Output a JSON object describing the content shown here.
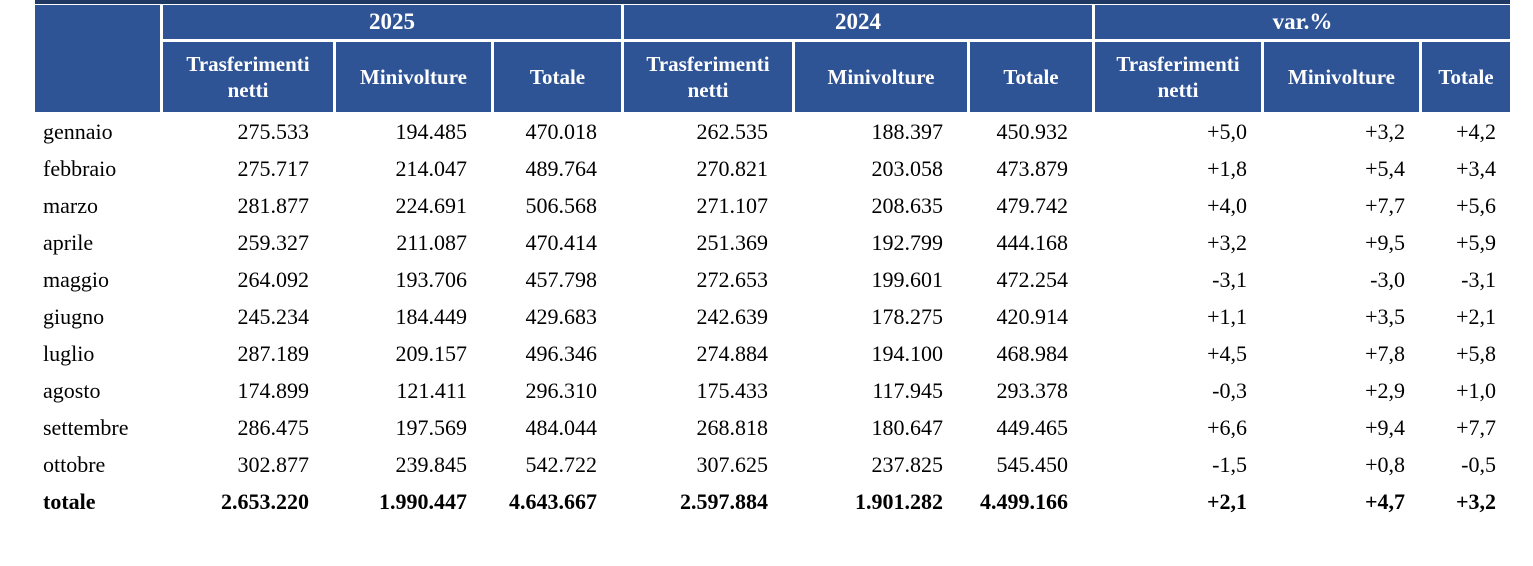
{
  "colors": {
    "header_bg": "#2f5496",
    "header_text": "#ffffff",
    "top_rule": "#1f3864",
    "body_text": "#000000"
  },
  "table": {
    "groups": [
      "2025",
      "2024",
      "var.%"
    ],
    "subheader_labels": [
      "Trasferimenti netti",
      "Minivolture",
      "Totale"
    ],
    "rows": [
      {
        "label": "gennaio",
        "bold": false,
        "values": [
          "275.533",
          "194.485",
          "470.018",
          "262.535",
          "188.397",
          "450.932",
          "+5,0",
          "+3,2",
          "+4,2"
        ]
      },
      {
        "label": "febbraio",
        "bold": false,
        "values": [
          "275.717",
          "214.047",
          "489.764",
          "270.821",
          "203.058",
          "473.879",
          "+1,8",
          "+5,4",
          "+3,4"
        ]
      },
      {
        "label": "marzo",
        "bold": false,
        "values": [
          "281.877",
          "224.691",
          "506.568",
          "271.107",
          "208.635",
          "479.742",
          "+4,0",
          "+7,7",
          "+5,6"
        ]
      },
      {
        "label": "aprile",
        "bold": false,
        "values": [
          "259.327",
          "211.087",
          "470.414",
          "251.369",
          "192.799",
          "444.168",
          "+3,2",
          "+9,5",
          "+5,9"
        ]
      },
      {
        "label": "maggio",
        "bold": false,
        "values": [
          "264.092",
          "193.706",
          "457.798",
          "272.653",
          "199.601",
          "472.254",
          "-3,1",
          "-3,0",
          "-3,1"
        ]
      },
      {
        "label": "giugno",
        "bold": false,
        "values": [
          "245.234",
          "184.449",
          "429.683",
          "242.639",
          "178.275",
          "420.914",
          "+1,1",
          "+3,5",
          "+2,1"
        ]
      },
      {
        "label": "luglio",
        "bold": false,
        "values": [
          "287.189",
          "209.157",
          "496.346",
          "274.884",
          "194.100",
          "468.984",
          "+4,5",
          "+7,8",
          "+5,8"
        ]
      },
      {
        "label": "agosto",
        "bold": false,
        "values": [
          "174.899",
          "121.411",
          "296.310",
          "175.433",
          "117.945",
          "293.378",
          "-0,3",
          "+2,9",
          "+1,0"
        ]
      },
      {
        "label": "settembre",
        "bold": false,
        "values": [
          "286.475",
          "197.569",
          "484.044",
          "268.818",
          "180.647",
          "449.465",
          "+6,6",
          "+9,4",
          "+7,7"
        ]
      },
      {
        "label": "ottobre",
        "bold": false,
        "values": [
          "302.877",
          "239.845",
          "542.722",
          "307.625",
          "237.825",
          "545.450",
          "-1,5",
          "+0,8",
          "-0,5"
        ]
      },
      {
        "label": "totale",
        "bold": true,
        "values": [
          "2.653.220",
          "1.990.447",
          "4.643.667",
          "2.597.884",
          "1.901.282",
          "4.499.166",
          "+2,1",
          "+4,7",
          "+3,2"
        ]
      }
    ]
  }
}
